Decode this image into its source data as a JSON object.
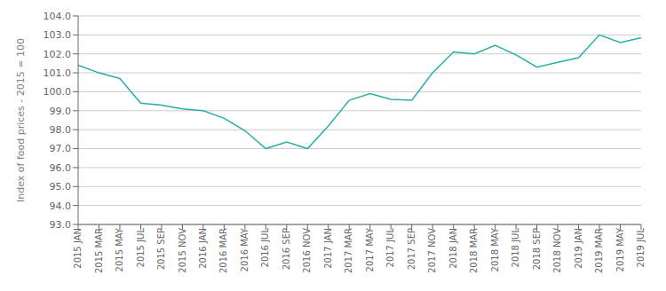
{
  "chart_data": {
    "type": "line",
    "ylabel": "Index of food prices - 2015 = 100",
    "categories": [
      "2015 JAN",
      "2015 MAR",
      "2015 MAY",
      "2015 JUL",
      "2015 SEP",
      "2015 NOV",
      "2016 JAN",
      "2016 MAR",
      "2016 MAY",
      "2016 JUL",
      "2016 SEP",
      "2016 NOV",
      "2017 JAN",
      "2017 MAR",
      "2017 MAY",
      "2017 JUL",
      "2017 SEP",
      "2017 NOV",
      "2018 JAN",
      "2018 MAR",
      "2018 MAY",
      "2018 JUL",
      "2018 SEP",
      "2018 NOV",
      "2019 JAN",
      "2019 MAR",
      "2019 MAY",
      "2019 JUL"
    ],
    "values": [
      101.4,
      101.0,
      100.7,
      99.4,
      99.3,
      99.1,
      99.0,
      98.6,
      97.95,
      97.0,
      97.35,
      97.0,
      98.2,
      99.55,
      99.9,
      99.6,
      99.55,
      101.0,
      102.1,
      102.0,
      102.45,
      101.95,
      101.3,
      101.55,
      101.8,
      103.0,
      102.6,
      102.85
    ],
    "color": "#2AAFA8",
    "ylim": [
      93.0,
      104.0
    ],
    "yticks": [
      {
        "value": 93,
        "label": "93.0"
      },
      {
        "value": 94,
        "label": "94.0"
      },
      {
        "value": 95,
        "label": "95.0"
      },
      {
        "value": 96,
        "label": "96.0"
      },
      {
        "value": 97,
        "label": "97.0"
      },
      {
        "value": 98,
        "label": "98.0"
      },
      {
        "value": 99,
        "label": "99.0"
      },
      {
        "value": 100,
        "label": "100.0"
      },
      {
        "value": 101,
        "label": "101.0"
      },
      {
        "value": 102,
        "label": "102.0"
      },
      {
        "value": 103,
        "label": "103.0"
      },
      {
        "value": 104,
        "label": "104.0"
      }
    ],
    "grid": true
  }
}
